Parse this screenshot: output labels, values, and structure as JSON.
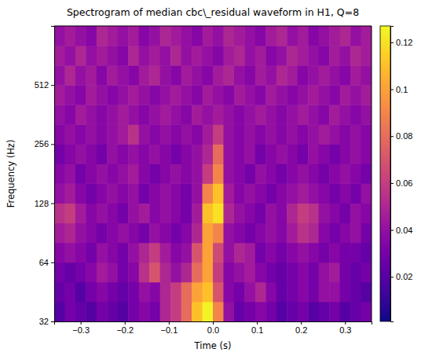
{
  "chart_data": {
    "type": "heatmap",
    "title": "Spectrogram of median cbc\\_residual waveform in H1, Q=8",
    "x_label": "Time (s)",
    "y_label": "Frequency (Hz)",
    "log": "y",
    "xlim": [
      -0.36,
      0.36
    ],
    "xticks": [
      {
        "value": -0.3,
        "label": "−0.3"
      },
      {
        "value": -0.2,
        "label": "−0.2"
      },
      {
        "value": -0.1,
        "label": "−0.1"
      },
      {
        "value": 0,
        "label": "0.0"
      },
      {
        "value": 0.1,
        "label": "0.1"
      },
      {
        "value": 0.2,
        "label": "0.2"
      },
      {
        "value": 0.3,
        "label": "0.3"
      }
    ],
    "ylim": [
      32,
      1024
    ],
    "yticks": [
      32,
      64,
      128,
      256,
      512
    ],
    "x": [
      -0.348,
      -0.324,
      -0.3,
      -0.276,
      -0.252,
      -0.228,
      -0.204,
      -0.18,
      -0.156,
      -0.132,
      -0.108,
      -0.084,
      -0.06,
      -0.036,
      -0.012,
      0.012,
      0.036,
      0.06,
      0.084,
      0.108,
      0.132,
      0.156,
      0.18,
      0.204,
      0.228,
      0.252,
      0.276,
      0.3,
      0.324,
      0.348
    ],
    "y": [
      35.9,
      45.3,
      57.0,
      71.8,
      90.5,
      114,
      144,
      181,
      228,
      287,
      362,
      456,
      575,
      724,
      912
    ],
    "values": [
      [
        0.02,
        0.03,
        0.025,
        0.02,
        0.03,
        0.025,
        0.02,
        0.03,
        0.035,
        0.03,
        0.05,
        0.06,
        0.08,
        0.11,
        0.125,
        0.09,
        0.04,
        0.025,
        0.03,
        0.035,
        0.03,
        0.02,
        0.025,
        0.03,
        0.02,
        0.025,
        0.03,
        0.02,
        0.025,
        0.03
      ],
      [
        0.025,
        0.03,
        0.02,
        0.03,
        0.035,
        0.03,
        0.025,
        0.03,
        0.04,
        0.035,
        0.05,
        0.06,
        0.08,
        0.1,
        0.11,
        0.07,
        0.035,
        0.03,
        0.04,
        0.05,
        0.035,
        0.025,
        0.03,
        0.035,
        0.03,
        0.04,
        0.04,
        0.03,
        0.025,
        0.02
      ],
      [
        0.03,
        0.025,
        0.03,
        0.035,
        0.045,
        0.04,
        0.03,
        0.035,
        0.055,
        0.07,
        0.05,
        0.04,
        0.05,
        0.08,
        0.1,
        0.06,
        0.035,
        0.04,
        0.045,
        0.035,
        0.03,
        0.025,
        0.03,
        0.035,
        0.03,
        0.04,
        0.045,
        0.03,
        0.025,
        0.03
      ],
      [
        0.035,
        0.04,
        0.035,
        0.03,
        0.04,
        0.035,
        0.03,
        0.04,
        0.05,
        0.06,
        0.045,
        0.035,
        0.04,
        0.07,
        0.1,
        0.065,
        0.04,
        0.05,
        0.045,
        0.03,
        0.035,
        0.03,
        0.035,
        0.04,
        0.035,
        0.03,
        0.035,
        0.03,
        0.03,
        0.025
      ],
      [
        0.045,
        0.05,
        0.04,
        0.035,
        0.03,
        0.035,
        0.04,
        0.035,
        0.03,
        0.04,
        0.035,
        0.03,
        0.035,
        0.05,
        0.1,
        0.09,
        0.04,
        0.035,
        0.03,
        0.035,
        0.04,
        0.035,
        0.045,
        0.055,
        0.05,
        0.035,
        0.03,
        0.035,
        0.04,
        0.03
      ],
      [
        0.055,
        0.06,
        0.045,
        0.035,
        0.04,
        0.035,
        0.03,
        0.04,
        0.045,
        0.035,
        0.04,
        0.035,
        0.03,
        0.045,
        0.11,
        0.12,
        0.05,
        0.04,
        0.035,
        0.03,
        0.04,
        0.035,
        0.05,
        0.06,
        0.055,
        0.04,
        0.035,
        0.03,
        0.04,
        0.035
      ],
      [
        0.04,
        0.045,
        0.035,
        0.03,
        0.035,
        0.04,
        0.035,
        0.04,
        0.03,
        0.035,
        0.04,
        0.035,
        0.03,
        0.04,
        0.09,
        0.11,
        0.045,
        0.035,
        0.04,
        0.035,
        0.03,
        0.035,
        0.04,
        0.045,
        0.04,
        0.035,
        0.03,
        0.035,
        0.03,
        0.04
      ],
      [
        0.035,
        0.04,
        0.03,
        0.035,
        0.04,
        0.035,
        0.04,
        0.045,
        0.035,
        0.03,
        0.035,
        0.04,
        0.035,
        0.04,
        0.06,
        0.09,
        0.04,
        0.035,
        0.03,
        0.04,
        0.035,
        0.03,
        0.035,
        0.04,
        0.035,
        0.03,
        0.035,
        0.04,
        0.035,
        0.03
      ],
      [
        0.03,
        0.035,
        0.04,
        0.035,
        0.03,
        0.04,
        0.035,
        0.04,
        0.035,
        0.04,
        0.035,
        0.03,
        0.035,
        0.04,
        0.05,
        0.08,
        0.04,
        0.035,
        0.04,
        0.03,
        0.035,
        0.04,
        0.035,
        0.03,
        0.04,
        0.035,
        0.03,
        0.035,
        0.04,
        0.035
      ],
      [
        0.035,
        0.04,
        0.035,
        0.04,
        0.035,
        0.04,
        0.045,
        0.055,
        0.04,
        0.035,
        0.04,
        0.035,
        0.04,
        0.035,
        0.045,
        0.06,
        0.04,
        0.035,
        0.04,
        0.035,
        0.04,
        0.035,
        0.04,
        0.035,
        0.04,
        0.045,
        0.04,
        0.035,
        0.04,
        0.035
      ],
      [
        0.04,
        0.035,
        0.045,
        0.04,
        0.035,
        0.04,
        0.045,
        0.04,
        0.035,
        0.04,
        0.045,
        0.04,
        0.035,
        0.045,
        0.04,
        0.045,
        0.04,
        0.035,
        0.04,
        0.045,
        0.04,
        0.035,
        0.04,
        0.045,
        0.04,
        0.035,
        0.045,
        0.04,
        0.035,
        0.04
      ],
      [
        0.045,
        0.04,
        0.035,
        0.045,
        0.04,
        0.035,
        0.04,
        0.045,
        0.04,
        0.035,
        0.04,
        0.045,
        0.04,
        0.035,
        0.045,
        0.04,
        0.035,
        0.045,
        0.04,
        0.035,
        0.045,
        0.04,
        0.035,
        0.04,
        0.045,
        0.04,
        0.035,
        0.045,
        0.04,
        0.045
      ],
      [
        0.04,
        0.05,
        0.04,
        0.045,
        0.035,
        0.045,
        0.04,
        0.035,
        0.045,
        0.05,
        0.04,
        0.035,
        0.045,
        0.04,
        0.035,
        0.045,
        0.05,
        0.04,
        0.035,
        0.045,
        0.04,
        0.05,
        0.045,
        0.035,
        0.04,
        0.045,
        0.04,
        0.035,
        0.045,
        0.04
      ],
      [
        0.045,
        0.04,
        0.05,
        0.04,
        0.045,
        0.04,
        0.035,
        0.05,
        0.04,
        0.045,
        0.04,
        0.05,
        0.04,
        0.045,
        0.04,
        0.035,
        0.045,
        0.05,
        0.04,
        0.045,
        0.035,
        0.04,
        0.05,
        0.045,
        0.04,
        0.035,
        0.045,
        0.04,
        0.05,
        0.045
      ],
      [
        0.04,
        0.045,
        0.04,
        0.035,
        0.05,
        0.045,
        0.04,
        0.045,
        0.035,
        0.04,
        0.05,
        0.045,
        0.04,
        0.035,
        0.045,
        0.04,
        0.05,
        0.045,
        0.04,
        0.035,
        0.045,
        0.05,
        0.04,
        0.045,
        0.035,
        0.04,
        0.045,
        0.05,
        0.04,
        0.045
      ]
    ],
    "color_range": [
      0.001,
      0.127
    ],
    "color_ticks": [
      0.02,
      0.04,
      0.06,
      0.08,
      0.1,
      0.12
    ]
  }
}
